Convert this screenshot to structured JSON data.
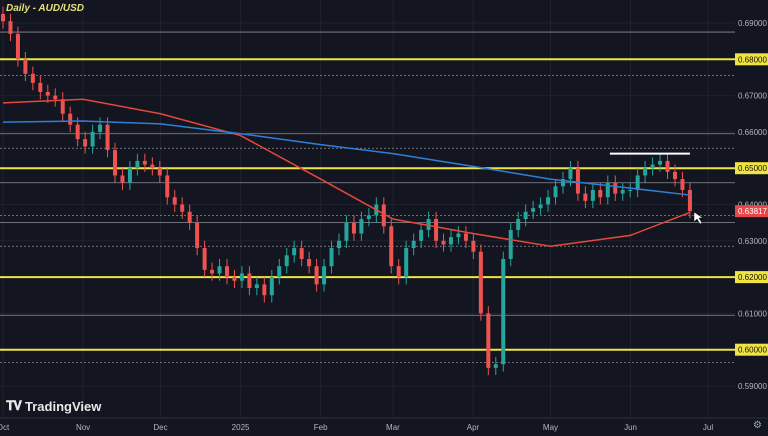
{
  "chart_data": {
    "type": "candlestick",
    "title": "Daily - AUD/USD",
    "xlim": [
      "2024-10-01",
      "2025-07-01"
    ],
    "ylim": [
      0.5855,
      0.6955
    ],
    "x_ticks": [
      {
        "label": "Oct",
        "date": "2024-10-01"
      },
      {
        "label": "Nov",
        "date": "2024-11-01"
      },
      {
        "label": "Dec",
        "date": "2024-12-01"
      },
      {
        "label": "2025",
        "date": "2025-01-01"
      },
      {
        "label": "Feb",
        "date": "2025-02-01"
      },
      {
        "label": "Mar",
        "date": "2025-03-01"
      },
      {
        "label": "Apr",
        "date": "2025-04-01"
      },
      {
        "label": "May",
        "date": "2025-05-01"
      },
      {
        "label": "Jun",
        "date": "2025-06-01"
      },
      {
        "label": "Jul",
        "date": "2025-07-01"
      }
    ],
    "y_ticks": [
      "0.69000",
      "0.68000",
      "0.67000",
      "0.66000",
      "0.65000",
      "0.64000",
      "0.63000",
      "0.62000",
      "0.61000",
      "0.60000",
      "0.59000"
    ],
    "highlighted_levels": [
      0.68,
      0.65,
      0.62,
      0.6
    ],
    "reference_levels": [
      0.6875,
      0.6755,
      0.6595,
      0.6555,
      0.646,
      0.637,
      0.635,
      0.6285,
      0.6095,
      0.5965
    ],
    "resistance_segment": {
      "from": "2025-05-24",
      "to": "2025-06-24",
      "value": 0.654
    },
    "candle_period": [
      "2024-10-01",
      "2025-06-24"
    ],
    "closes": [
      0.6905,
      0.687,
      0.68,
      0.676,
      0.6735,
      0.671,
      0.67,
      0.669,
      0.665,
      0.662,
      0.658,
      0.656,
      0.66,
      0.662,
      0.655,
      0.648,
      0.646,
      0.65,
      0.652,
      0.651,
      0.65,
      0.648,
      0.642,
      0.64,
      0.638,
      0.635,
      0.628,
      0.622,
      0.621,
      0.623,
      0.62,
      0.619,
      0.621,
      0.617,
      0.618,
      0.615,
      0.62,
      0.623,
      0.626,
      0.628,
      0.625,
      0.623,
      0.618,
      0.623,
      0.628,
      0.63,
      0.635,
      0.632,
      0.636,
      0.637,
      0.64,
      0.634,
      0.623,
      0.62,
      0.628,
      0.63,
      0.633,
      0.636,
      0.63,
      0.629,
      0.631,
      0.632,
      0.63,
      0.627,
      0.61,
      0.595,
      0.596,
      0.625,
      0.633,
      0.636,
      0.638,
      0.639,
      0.64,
      0.642,
      0.645,
      0.647,
      0.65,
      0.643,
      0.641,
      0.644,
      0.642,
      0.646,
      0.643,
      0.644,
      0.644,
      0.648,
      0.65,
      0.651,
      0.652,
      0.649,
      0.647,
      0.644,
      0.63817
    ],
    "series": [
      {
        "type": "line",
        "color": "#e8473b",
        "points": [
          [
            "2024-10-01",
            0.668
          ],
          [
            "2024-11-01",
            0.669
          ],
          [
            "2024-12-01",
            0.665
          ],
          [
            "2025-01-01",
            0.659
          ],
          [
            "2025-02-01",
            0.647
          ],
          [
            "2025-03-01",
            0.636
          ],
          [
            "2025-04-01",
            0.632
          ],
          [
            "2025-05-01",
            0.6285
          ],
          [
            "2025-06-01",
            0.6315
          ],
          [
            "2025-06-24",
            0.6378
          ]
        ]
      },
      {
        "type": "line",
        "color": "#2f7fd6",
        "points": [
          [
            "2024-10-01",
            0.6627
          ],
          [
            "2024-11-01",
            0.663
          ],
          [
            "2024-12-01",
            0.6622
          ],
          [
            "2025-01-01",
            0.6595
          ],
          [
            "2025-02-01",
            0.6565
          ],
          [
            "2025-03-01",
            0.654
          ],
          [
            "2025-04-01",
            0.6505
          ],
          [
            "2025-05-01",
            0.647
          ],
          [
            "2025-06-01",
            0.6445
          ],
          [
            "2025-06-24",
            0.6426
          ]
        ]
      }
    ],
    "last_price": "0.63817",
    "colors": {
      "up": "#26a69a",
      "down": "#ef5350",
      "level": "#f0e442",
      "background": "#131620",
      "last_price": "#e8474a"
    },
    "grid": true
  },
  "branding": {
    "name": "TradingView"
  }
}
